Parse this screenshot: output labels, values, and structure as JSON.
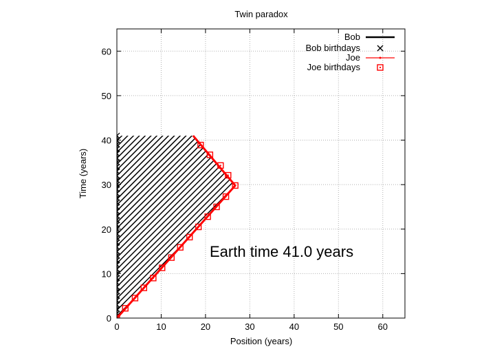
{
  "chart_data": {
    "type": "line",
    "title": "Twin paradox",
    "xlabel": "Position (years)",
    "ylabel": "Time (years)",
    "xlim": [
      0,
      65
    ],
    "ylim": [
      0,
      65
    ],
    "xticks": [
      0,
      10,
      20,
      30,
      40,
      50,
      60
    ],
    "yticks": [
      0,
      10,
      20,
      30,
      40,
      50,
      60
    ],
    "grid": true,
    "legend_position": "top-right",
    "annotation": "Earth time 41.0 years",
    "series": [
      {
        "name": "Bob",
        "color": "#000000",
        "x": [
          0,
          0
        ],
        "y": [
          0,
          41
        ]
      },
      {
        "name": "Bob birthdays",
        "color": "#000000",
        "marker": "cross",
        "x": [
          0,
          0,
          0,
          0,
          0,
          0,
          0,
          0,
          0,
          0,
          0,
          0,
          0,
          0,
          0,
          0,
          0,
          0,
          0,
          0,
          0,
          0,
          0,
          0,
          0,
          0,
          0,
          0,
          0,
          0,
          0,
          0,
          0,
          0,
          0,
          0,
          0,
          0,
          0,
          0,
          0,
          0
        ],
        "y": [
          0,
          1,
          2,
          3,
          4,
          5,
          6,
          7,
          8,
          9,
          10,
          11,
          12,
          13,
          14,
          15,
          16,
          17,
          18,
          19,
          20,
          21,
          22,
          23,
          24,
          25,
          26,
          27,
          28,
          29,
          30,
          31,
          32,
          33,
          34,
          35,
          36,
          37,
          38,
          39,
          40,
          41
        ]
      },
      {
        "name": "Joe",
        "color": "#ff0000",
        "x": [
          0,
          26.7,
          17.2
        ],
        "y": [
          0,
          29.8,
          41
        ]
      },
      {
        "name": "Joe birthdays",
        "color": "#ff0000",
        "marker": "square",
        "x": [
          0,
          1.9,
          4.1,
          6.1,
          8.2,
          10.2,
          12.3,
          14.3,
          16.4,
          18.4,
          20.5,
          22.5,
          24.6,
          26.7,
          25.1,
          23.4,
          21.0,
          18.9
        ],
        "y": [
          0,
          2.2,
          4.5,
          6.8,
          9.0,
          11.3,
          13.6,
          15.9,
          18.2,
          20.5,
          22.8,
          25.0,
          27.3,
          29.8,
          32.1,
          34.3,
          36.7,
          38.9
        ]
      }
    ]
  }
}
